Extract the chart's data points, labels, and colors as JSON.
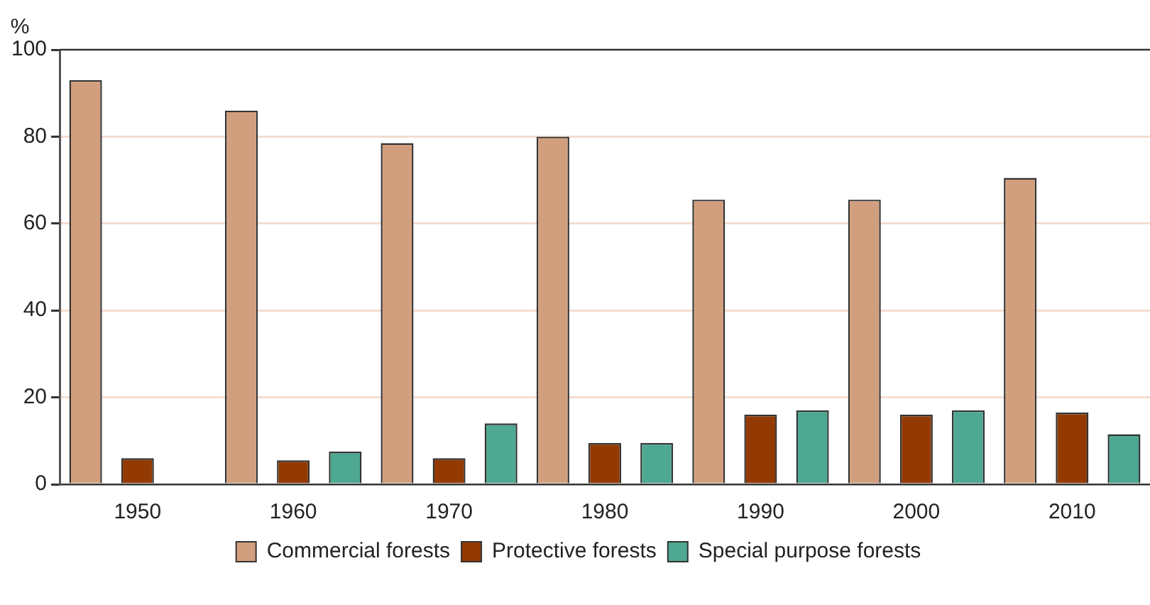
{
  "chart_data": {
    "type": "bar",
    "ylabel": "%",
    "categories": [
      "1950",
      "1960",
      "1970",
      "1980",
      "1990",
      "2000",
      "2010"
    ],
    "series": [
      {
        "name": "Commercial forests",
        "color": "#d29f7e",
        "values": [
          93,
          86,
          78.5,
          80,
          65.5,
          65.5,
          70.5
        ]
      },
      {
        "name": "Protective forests",
        "color": "#933a03",
        "values": [
          6,
          5.5,
          6,
          9.5,
          16,
          16,
          16.5
        ]
      },
      {
        "name": "Special purpose forests",
        "color": "#4fa891",
        "values": [
          null,
          7.5,
          14,
          9.5,
          17,
          17,
          11.5
        ]
      }
    ],
    "ylim": [
      0,
      100
    ],
    "yticks": [
      0,
      20,
      40,
      60,
      80,
      100
    ],
    "grid": "y",
    "legend": "bottom"
  }
}
